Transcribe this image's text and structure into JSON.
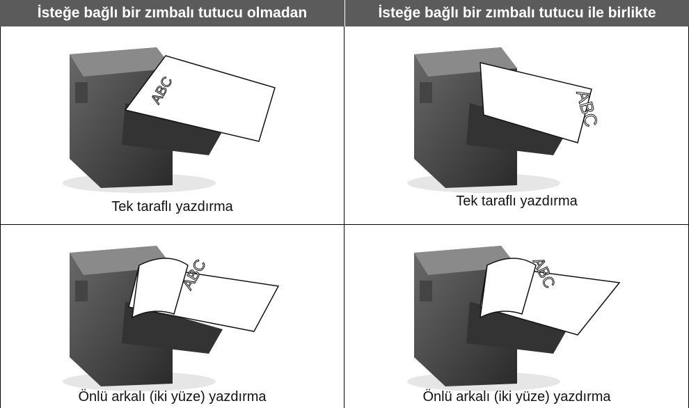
{
  "table": {
    "headers": [
      "İsteğe bağlı bir zımbalı tutucu olmadan",
      "İsteğe bağlı bir zımbalı tutucu ile birlikte"
    ],
    "rows": [
      [
        {
          "paper_text": "ABC",
          "caption": "Tek taraflı yazdırma"
        },
        {
          "paper_text": "ABC",
          "caption": "Tek taraflı yazdırma"
        }
      ],
      [
        {
          "paper_text": "ABC",
          "caption": "Önlü arkalı (iki yüze) yazdırma"
        },
        {
          "paper_text": "ABC",
          "caption": "Önlü arkalı (iki yüze) yazdırma"
        }
      ]
    ]
  }
}
